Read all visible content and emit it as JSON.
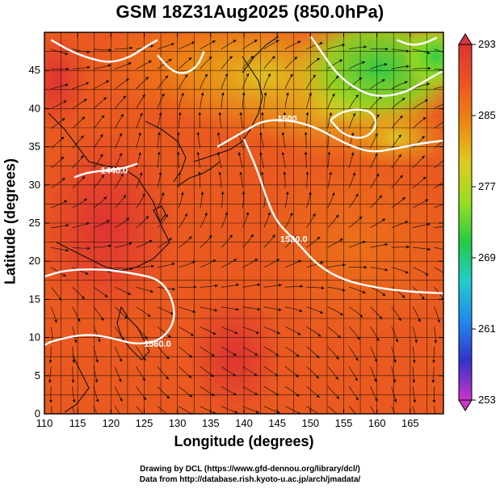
{
  "title": "GSM 18Z31Aug2025 (850.0hPa)",
  "xlabel": "Longitude (degrees)",
  "ylabel": "Latitude  (degrees)",
  "credits": [
    "Drawing by DCL (https://www.gfd-dennou.org/library/dcl/)",
    "Data from http://database.rish.kyoto-u.ac.jp/arch/jmadata/"
  ],
  "chart_data": {
    "type": "heatmap",
    "xlim": [
      110,
      170
    ],
    "ylim": [
      0,
      50
    ],
    "xticks": [
      "110",
      "115",
      "120",
      "125",
      "130",
      "135",
      "140",
      "145",
      "150",
      "155",
      "160",
      "165"
    ],
    "yticks": [
      "0",
      "5",
      "10",
      "15",
      "20",
      "25",
      "30",
      "35",
      "40",
      "45"
    ],
    "colorbar": {
      "ticks": [
        "253",
        "261",
        "269",
        "277",
        "285",
        "293"
      ],
      "range": [
        253,
        293
      ],
      "colors": [
        "#cc33cc",
        "#3333cc",
        "#2288ee",
        "#22cccc",
        "#22cc44",
        "#99dd22",
        "#ddcc22",
        "#ee8811",
        "#ee5522",
        "#dd3333"
      ]
    },
    "contours": [
      {
        "label": "1440.0",
        "lon": 120.5,
        "lat": 31.5,
        "points": [
          [
            114.5,
            31
          ],
          [
            116,
            31.5
          ],
          [
            118,
            31.8
          ],
          [
            120,
            32
          ],
          [
            122,
            32.2
          ],
          [
            124,
            32.8
          ]
        ]
      },
      {
        "label": "1500",
        "lon": 146.5,
        "lat": 38.3,
        "points": [
          [
            136,
            35
          ],
          [
            140,
            37
          ],
          [
            143,
            38.5
          ],
          [
            147,
            38.5
          ],
          [
            151,
            37.5
          ],
          [
            155,
            35.5
          ],
          [
            159,
            34.2
          ],
          [
            163,
            34.8
          ],
          [
            167,
            35.5
          ],
          [
            170,
            35.8
          ]
        ]
      },
      {
        "label": "1520.0",
        "lon": 147.5,
        "lat": 22.5,
        "points": [
          [
            140,
            36
          ],
          [
            142,
            32
          ],
          [
            143.5,
            28
          ],
          [
            145,
            25
          ],
          [
            148,
            22.5
          ],
          [
            151,
            19.5
          ],
          [
            155,
            17.5
          ],
          [
            160,
            16.5
          ],
          [
            165,
            16
          ],
          [
            170,
            15.8
          ]
        ]
      },
      {
        "label": "1560.0",
        "lon": 127,
        "lat": 8.8,
        "points": [
          [
            110,
            18
          ],
          [
            113,
            18.8
          ],
          [
            118,
            19
          ],
          [
            123,
            18.5
          ],
          [
            128,
            17.5
          ],
          [
            130,
            13
          ],
          [
            128,
            9.8
          ],
          [
            124,
            9
          ],
          [
            120,
            10
          ],
          [
            116,
            10.5
          ],
          [
            111,
            9.5
          ],
          [
            110,
            9
          ]
        ]
      },
      {
        "label": "",
        "lon": 0,
        "lat": 0,
        "points": [
          [
            111,
            49
          ],
          [
            114,
            47.5
          ],
          [
            117,
            46.5
          ],
          [
            120,
            46
          ],
          [
            123,
            46.8
          ],
          [
            125,
            48
          ],
          [
            127,
            49
          ]
        ]
      },
      {
        "label": "",
        "lon": 0,
        "lat": 0,
        "points": [
          [
            127,
            47
          ],
          [
            129,
            45
          ],
          [
            131,
            44.5
          ],
          [
            133,
            45.5
          ],
          [
            134,
            47.5
          ]
        ]
      },
      {
        "label": "",
        "lon": 0,
        "lat": 0,
        "points": [
          [
            150,
            49.5
          ],
          [
            152,
            47
          ],
          [
            154,
            44.5
          ],
          [
            157,
            42.5
          ],
          [
            160,
            41.5
          ],
          [
            164,
            42
          ],
          [
            167,
            43.5
          ],
          [
            170,
            45
          ]
        ]
      },
      {
        "label": "",
        "lon": 0,
        "lat": 0,
        "points": [
          [
            153,
            38.5
          ],
          [
            155,
            36.5
          ],
          [
            158,
            36
          ],
          [
            160,
            37.5
          ],
          [
            159.5,
            39.5
          ],
          [
            157,
            40
          ],
          [
            154.5,
            39.5
          ],
          [
            153,
            38.5
          ]
        ]
      },
      {
        "label": "",
        "lon": 0,
        "lat": 0,
        "points": [
          [
            163,
            49
          ],
          [
            165,
            48.3
          ],
          [
            167,
            48.5
          ],
          [
            169,
            49.3
          ]
        ]
      }
    ]
  }
}
